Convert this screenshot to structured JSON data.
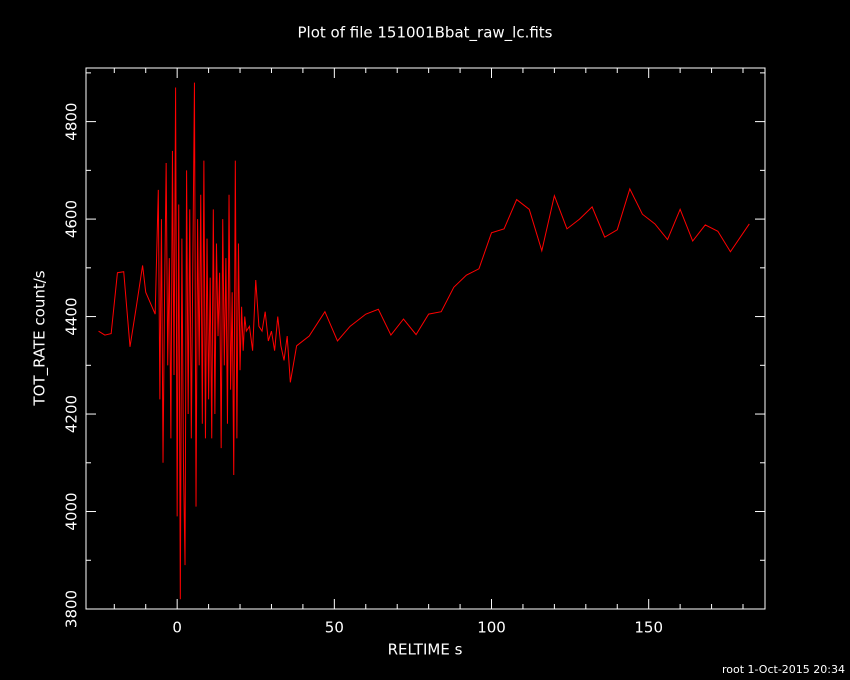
{
  "chart_data": {
    "type": "line",
    "title": "Plot of file 151001Bbat_raw_lc.fits",
    "x_label": "RELTIME  s",
    "y_label": "TOT_RATE  count/s",
    "footer": "root  1-Oct-2015 20:34",
    "color": "#ff0000",
    "xlim": [
      -29,
      187
    ],
    "ylim": [
      3800,
      4910
    ],
    "xticks": [
      0,
      50,
      100,
      150
    ],
    "yticks": [
      3800,
      4000,
      4200,
      4400,
      4600,
      4800
    ],
    "xminorticks": [
      -20,
      -10,
      10,
      20,
      30,
      40,
      60,
      70,
      80,
      90,
      110,
      120,
      130,
      140,
      160,
      170,
      180
    ],
    "yminorticks": [
      3900,
      4100,
      4300,
      4500,
      4700,
      4900
    ],
    "x": [
      -25,
      -23,
      -21,
      -19,
      -17,
      -15,
      -13,
      -11,
      -10,
      -8,
      -7,
      -6,
      -5.5,
      -5,
      -4.5,
      -4,
      -3.5,
      -3,
      -2.5,
      -2,
      -1.5,
      -1,
      -0.5,
      0,
      0.5,
      1,
      1.5,
      2,
      2.5,
      3,
      3.5,
      4,
      4.5,
      5,
      5.5,
      6,
      6.5,
      7,
      7.5,
      8,
      8.5,
      9,
      9.5,
      10,
      10.5,
      11,
      11.5,
      12,
      12.5,
      13,
      13.5,
      14,
      14.5,
      15,
      15.5,
      16,
      16.5,
      17,
      17.5,
      18,
      18.5,
      19,
      19.5,
      20,
      20.5,
      21,
      21.5,
      22,
      23,
      24,
      25,
      26,
      27,
      28,
      29,
      30,
      31,
      32,
      33,
      34,
      35,
      36,
      38,
      42,
      47,
      51,
      55,
      60,
      64,
      68,
      72,
      76,
      80,
      84,
      88,
      92,
      96,
      100,
      104,
      108,
      112,
      116,
      120,
      124,
      128,
      132,
      136,
      140,
      144,
      148,
      152,
      156,
      160,
      164,
      168,
      172,
      176,
      182
    ],
    "values": [
      4370,
      4362,
      4365,
      4490,
      4492,
      4338,
      4420,
      4505,
      4450,
      4420,
      4405,
      4660,
      4230,
      4600,
      4100,
      4450,
      4715,
      4300,
      4520,
      4150,
      4740,
      4280,
      4870,
      3990,
      4630,
      3820,
      4560,
      4100,
      3890,
      4700,
      4200,
      4620,
      4150,
      4520,
      4880,
      4010,
      4600,
      4300,
      4650,
      4180,
      4720,
      4150,
      4560,
      4230,
      4480,
      4150,
      4620,
      4200,
      4550,
      4360,
      4490,
      4130,
      4600,
      4300,
      4520,
      4180,
      4650,
      4250,
      4450,
      4075,
      4720,
      4150,
      4550,
      4290,
      4420,
      4330,
      4400,
      4370,
      4380,
      4330,
      4475,
      4380,
      4370,
      4410,
      4350,
      4370,
      4330,
      4400,
      4340,
      4310,
      4360,
      4265,
      4340,
      4360,
      4410,
      4350,
      4380,
      4405,
      4415,
      4362,
      4395,
      4363,
      4405,
      4410,
      4460,
      4485,
      4498,
      4572,
      4580,
      4640,
      4620,
      4535,
      4648,
      4580,
      4600,
      4625,
      4563,
      4578,
      4662,
      4610,
      4590,
      4558,
      4620,
      4555,
      4588,
      4575,
      4533,
      4590
    ]
  }
}
